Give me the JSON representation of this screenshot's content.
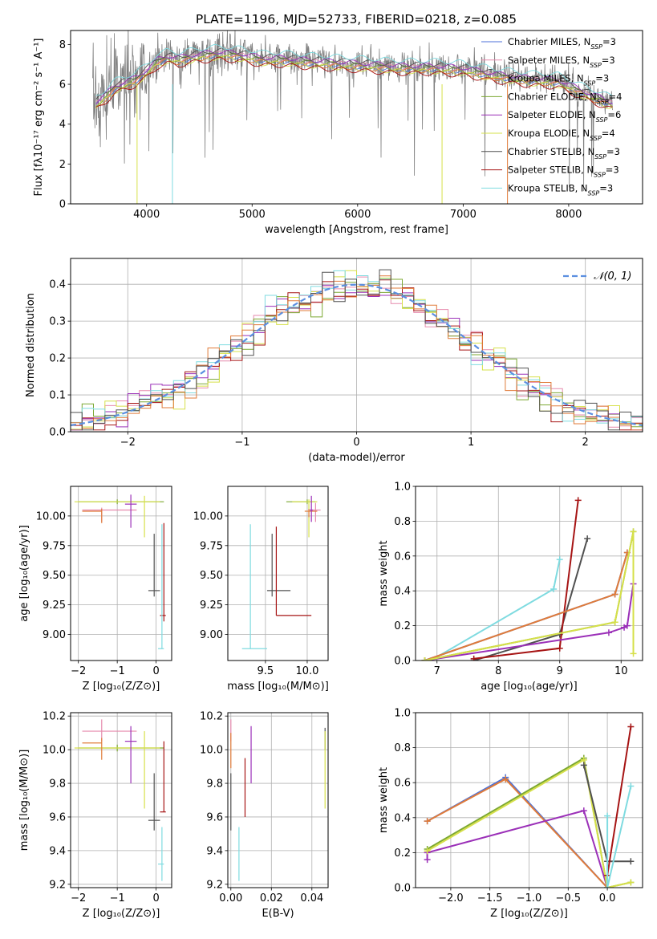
{
  "figure_title": "PLATE=1196, MJD=52733, FIBERID=0218, z=0.085",
  "colors": {
    "chabrier_miles": "#4d72d9",
    "salpeter_miles": "#e68aad",
    "kroupa_miles": "#e07b39",
    "chabrier_elodie": "#7ca832",
    "salpeter_elodie": "#9b30b8",
    "kroupa_elodie": "#d6e04a",
    "chabrier_stelib": "#505050",
    "salpeter_stelib": "#a61414",
    "kroupa_stelib": "#7fdbe0",
    "gaussian": "#5b8fe0",
    "data": "#808080"
  },
  "chart_data": [
    {
      "id": "spectrum",
      "type": "line",
      "title": "PLATE=1196, MJD=52733, FIBERID=0218, z=0.085",
      "xlabel": "wavelength [Angstrom, rest frame]",
      "ylabel": "Flux [fλ10⁻¹⁷ erg cm⁻² s⁻¹ A⁻¹]",
      "xlim": [
        3280,
        8700
      ],
      "ylim": [
        0,
        8.7
      ],
      "xticks": [
        4000,
        5000,
        6000,
        7000,
        8000
      ],
      "yticks": [
        0,
        2,
        4,
        6,
        8
      ],
      "grid": false,
      "legend_position": "right",
      "legend": [
        {
          "label": "Chabrier MILES, N",
          "sub": "SSP",
          "n": "=3",
          "color_key": "chabrier_miles"
        },
        {
          "label": "Salpeter MILES, N",
          "sub": "SSP",
          "n": "=3",
          "color_key": "salpeter_miles"
        },
        {
          "label": "Kroupa MILES, N",
          "sub": "SSP",
          "n": "=3",
          "color_key": "kroupa_miles"
        },
        {
          "label": "Chabrier ELODIE, N",
          "sub": "SSP",
          "n": "=4",
          "color_key": "chabrier_elodie"
        },
        {
          "label": "Salpeter ELODIE, N",
          "sub": "SSP",
          "n": "=6",
          "color_key": "salpeter_elodie"
        },
        {
          "label": "Kroupa ELODIE, N",
          "sub": "SSP",
          "n": "=4",
          "color_key": "kroupa_elodie"
        },
        {
          "label": "Chabrier STELIB, N",
          "sub": "SSP",
          "n": "=3",
          "color_key": "chabrier_stelib"
        },
        {
          "label": "Salpeter STELIB, N",
          "sub": "SSP",
          "n": "=3",
          "color_key": "salpeter_stelib"
        },
        {
          "label": "Kroupa STELIB, N",
          "sub": "SSP",
          "n": "=3",
          "color_key": "kroupa_stelib"
        }
      ],
      "continuum": {
        "x": [
          3500,
          3600,
          3700,
          3800,
          3900,
          4000,
          4100,
          4200,
          4300,
          4500,
          4700,
          4900,
          5100,
          5300,
          5500,
          5800,
          6100,
          6400,
          6700,
          7000,
          7300,
          7600,
          7900,
          8200,
          8400
        ],
        "y": [
          5.0,
          5.4,
          5.9,
          6.1,
          6.3,
          6.7,
          7.2,
          7.4,
          7.3,
          7.5,
          7.6,
          7.5,
          7.3,
          7.3,
          7.2,
          7.1,
          7.0,
          6.9,
          6.9,
          6.8,
          6.5,
          6.3,
          6.2,
          5.5,
          5.1
        ]
      },
      "model_offsets": {
        "chabrier_miles": -0.15,
        "salpeter_miles": -0.05,
        "kroupa_miles": -0.2,
        "chabrier_elodie": -0.1,
        "salpeter_elodie": 0.05,
        "kroupa_elodie": -0.25,
        "chabrier_stelib": 0.1,
        "salpeter_stelib": -0.35,
        "kroupa_stelib": 0.3
      }
    },
    {
      "id": "residuals",
      "type": "histogram",
      "xlabel": "(data-model)/error",
      "ylabel": "Normed distribution",
      "xlim": [
        -2.5,
        2.5
      ],
      "ylim": [
        0,
        0.47
      ],
      "xticks": [
        -2,
        -1,
        0,
        1,
        2
      ],
      "yticks": [
        0.0,
        0.1,
        0.2,
        0.3,
        0.4
      ],
      "grid": true,
      "legend_position": "top-right",
      "gaussian_label": "𝒩(0, 1)",
      "bin_width": 0.1,
      "bin_start": -2.5,
      "series_colors": [
        "salpeter_miles",
        "chabrier_elodie",
        "salpeter_elodie",
        "kroupa_elodie",
        "salpeter_stelib",
        "kroupa_stelib",
        "kroupa_miles",
        "chabrier_stelib"
      ]
    },
    {
      "id": "age_vs_z",
      "type": "errorbar",
      "xlabel": "Z [log₁₀(Z/Z⊙)]",
      "ylabel": "age  [log₁₀(age/yr)]",
      "xlim": [
        -2.2,
        0.4
      ],
      "ylim": [
        8.78,
        10.25
      ],
      "xticks": [
        -2,
        -1,
        0
      ],
      "yticks": [
        9.0,
        9.25,
        9.5,
        9.75,
        10.0
      ],
      "grid": true,
      "points": [
        {
          "color_key": "chabrier_elodie",
          "x": -1.0,
          "y": 10.12,
          "xerr": [
            1.0,
            1.2
          ],
          "yerr": [
            0.02,
            0.02
          ]
        },
        {
          "color_key": "kroupa_elodie",
          "x": -0.3,
          "y": 10.12,
          "xerr": [
            1.8,
            0.4
          ],
          "yerr": [
            0.3,
            0.05
          ]
        },
        {
          "color_key": "salpeter_miles",
          "x": -1.4,
          "y": 10.05,
          "xerr": [
            0.5,
            0.9
          ],
          "yerr": [
            0.1,
            0.02
          ]
        },
        {
          "color_key": "kroupa_miles",
          "x": -1.4,
          "y": 10.04,
          "xerr": [
            0.5,
            0.0
          ],
          "yerr": [
            0.1,
            0.02
          ]
        },
        {
          "color_key": "salpeter_elodie",
          "x": -0.65,
          "y": 10.1,
          "xerr": [
            0.15,
            0.15
          ],
          "yerr": [
            0.2,
            0.08
          ]
        },
        {
          "color_key": "chabrier_stelib",
          "x": -0.05,
          "y": 9.37,
          "xerr": [
            0.15,
            0.15
          ],
          "yerr": [
            0.05,
            0.48
          ]
        },
        {
          "color_key": "salpeter_stelib",
          "x": 0.2,
          "y": 9.16,
          "xerr": [
            0.1,
            0.05
          ],
          "yerr": [
            0.05,
            0.78
          ]
        },
        {
          "color_key": "kroupa_stelib",
          "x": 0.15,
          "y": 8.88,
          "xerr": [
            0.1,
            0.05
          ],
          "yerr": [
            0.0,
            1.05
          ]
        }
      ]
    },
    {
      "id": "age_vs_mass",
      "type": "errorbar",
      "xlabel": "mass [log₁₀(M/M⊙)]",
      "ylabel": "",
      "xlim": [
        9.05,
        10.25
      ],
      "ylim": [
        8.78,
        10.25
      ],
      "xticks": [
        9.5,
        10.0
      ],
      "yticks": [
        9.0,
        9.25,
        9.5,
        9.75,
        10.0
      ],
      "grid": true,
      "points": [
        {
          "color_key": "chabrier_elodie",
          "x": 10.0,
          "y": 10.12,
          "xerr": [
            0.25,
            0.1
          ],
          "yerr": [
            0.02,
            0.02
          ]
        },
        {
          "color_key": "kroupa_elodie",
          "x": 10.02,
          "y": 10.12,
          "xerr": [
            0.2,
            0.1
          ],
          "yerr": [
            0.3,
            0.02
          ]
        },
        {
          "color_key": "salpeter_miles",
          "x": 10.1,
          "y": 10.05,
          "xerr": [
            0.06,
            0.06
          ],
          "yerr": [
            0.1,
            0.06
          ]
        },
        {
          "color_key": "kroupa_miles",
          "x": 10.02,
          "y": 10.04,
          "xerr": [
            0.05,
            0.1
          ],
          "yerr": [
            0.05,
            0.02
          ]
        },
        {
          "color_key": "salpeter_elodie",
          "x": 10.05,
          "y": 10.05,
          "xerr": [
            0.02,
            0.02
          ],
          "yerr": [
            0.1,
            0.12
          ]
        },
        {
          "color_key": "chabrier_stelib",
          "x": 9.58,
          "y": 9.37,
          "xerr": [
            0.06,
            0.22
          ],
          "yerr": [
            0.05,
            0.48
          ]
        },
        {
          "color_key": "salpeter_stelib",
          "x": 9.63,
          "y": 9.16,
          "xerr": [
            0.0,
            0.42
          ],
          "yerr": [
            0.0,
            0.75
          ]
        },
        {
          "color_key": "kroupa_stelib",
          "x": 9.32,
          "y": 8.88,
          "xerr": [
            0.1,
            0.2
          ],
          "yerr": [
            0.0,
            1.05
          ]
        }
      ]
    },
    {
      "id": "weight_vs_age",
      "type": "line",
      "xlabel": "age  [log₁₀(age/yr)]",
      "ylabel": "mass weight",
      "xlim": [
        6.65,
        10.35
      ],
      "ylim": [
        0,
        1.0
      ],
      "xticks": [
        7,
        8,
        9,
        10
      ],
      "yticks": [
        0.0,
        0.2,
        0.4,
        0.6,
        0.8,
        1.0
      ],
      "grid": true,
      "series": [
        {
          "color_key": "kroupa_stelib",
          "x": [
            6.9,
            8.9,
            9.0
          ],
          "y": [
            0.0,
            0.41,
            0.58
          ]
        },
        {
          "color_key": "chabrier_stelib",
          "x": [
            7.6,
            9.0,
            9.45
          ],
          "y": [
            0.0,
            0.15,
            0.7
          ]
        },
        {
          "color_key": "salpeter_stelib",
          "x": [
            7.6,
            9.0,
            9.3
          ],
          "y": [
            0.01,
            0.07,
            0.92
          ]
        },
        {
          "color_key": "chabrier_miles",
          "x": [
            6.8,
            9.9,
            10.1
          ],
          "y": [
            0.0,
            0.38,
            0.62
          ]
        },
        {
          "color_key": "kroupa_miles",
          "x": [
            6.8,
            9.9,
            10.1
          ],
          "y": [
            0.0,
            0.38,
            0.62
          ]
        },
        {
          "color_key": "salpeter_elodie",
          "x": [
            6.8,
            9.8,
            10.05,
            10.1,
            10.2
          ],
          "y": [
            0.0,
            0.16,
            0.19,
            0.2,
            0.44
          ]
        },
        {
          "color_key": "chabrier_elodie",
          "x": [
            6.8,
            9.9,
            10.2
          ],
          "y": [
            0.0,
            0.22,
            0.74
          ]
        },
        {
          "color_key": "kroupa_elodie",
          "x": [
            6.8,
            9.9,
            10.2,
            10.2
          ],
          "y": [
            0.0,
            0.22,
            0.74,
            0.04
          ]
        }
      ]
    },
    {
      "id": "mass_vs_z",
      "type": "errorbar",
      "xlabel": "Z [log₁₀(Z/Z⊙)]",
      "ylabel": "mass [log₁₀(M/M⊙)]",
      "xlim": [
        -2.2,
        0.4
      ],
      "ylim": [
        9.18,
        10.22
      ],
      "xticks": [
        -2,
        -1,
        0
      ],
      "yticks": [
        9.2,
        9.4,
        9.6,
        9.8,
        10.0,
        10.2
      ],
      "grid": true,
      "points": [
        {
          "color_key": "chabrier_elodie",
          "x": -1.0,
          "y": 10.01,
          "xerr": [
            1.0,
            1.2
          ],
          "yerr": [
            0.02,
            0.02
          ]
        },
        {
          "color_key": "kroupa_elodie",
          "x": -0.3,
          "y": 10.01,
          "xerr": [
            1.8,
            0.4
          ],
          "yerr": [
            0.36,
            0.1
          ]
        },
        {
          "color_key": "salpeter_miles",
          "x": -1.4,
          "y": 10.11,
          "xerr": [
            0.5,
            0.9
          ],
          "yerr": [
            0.06,
            0.07
          ]
        },
        {
          "color_key": "kroupa_miles",
          "x": -1.4,
          "y": 10.04,
          "xerr": [
            0.5,
            0.0
          ],
          "yerr": [
            0.1,
            0.03
          ]
        },
        {
          "color_key": "salpeter_elodie",
          "x": -0.65,
          "y": 10.05,
          "xerr": [
            0.15,
            0.15
          ],
          "yerr": [
            0.25,
            0.09
          ]
        },
        {
          "color_key": "chabrier_stelib",
          "x": -0.05,
          "y": 9.58,
          "xerr": [
            0.15,
            0.15
          ],
          "yerr": [
            0.06,
            0.28
          ]
        },
        {
          "color_key": "salpeter_stelib",
          "x": 0.2,
          "y": 9.63,
          "xerr": [
            0.1,
            0.05
          ],
          "yerr": [
            0.0,
            0.42
          ]
        },
        {
          "color_key": "kroupa_stelib",
          "x": 0.15,
          "y": 9.32,
          "xerr": [
            0.1,
            0.05
          ],
          "yerr": [
            0.1,
            0.22
          ]
        }
      ]
    },
    {
      "id": "mass_vs_ebv",
      "type": "errorbar",
      "xlabel": "E(B-V)",
      "ylabel": "",
      "xlim": [
        -0.0015,
        0.048
      ],
      "ylim": [
        9.18,
        10.22
      ],
      "xticks": [
        0.0,
        0.02,
        0.04
      ],
      "yticks": [
        9.2,
        9.4,
        9.6,
        9.8,
        10.0,
        10.2
      ],
      "grid": true,
      "points": [
        {
          "color_key": "salpeter_miles",
          "x": 0.0,
          "y": 10.11,
          "xerr": [
            0.0,
            0.0
          ],
          "yerr": [
            0.06,
            0.07
          ]
        },
        {
          "color_key": "kroupa_miles",
          "x": 0.0,
          "y": 10.04,
          "xerr": [
            0.0,
            0.0
          ],
          "yerr": [
            0.15,
            0.06
          ]
        },
        {
          "color_key": "chabrier_stelib",
          "x": 0.0,
          "y": 9.58,
          "xerr": [
            0.0,
            0.0
          ],
          "yerr": [
            0.06,
            0.28
          ]
        },
        {
          "color_key": "kroupa_stelib",
          "x": 0.004,
          "y": 9.32,
          "xerr": [
            0.0,
            0.0
          ],
          "yerr": [
            0.1,
            0.22
          ]
        },
        {
          "color_key": "salpeter_stelib",
          "x": 0.007,
          "y": 9.63,
          "xerr": [
            0.0,
            0.0
          ],
          "yerr": [
            0.03,
            0.32
          ]
        },
        {
          "color_key": "salpeter_elodie",
          "x": 0.01,
          "y": 10.05,
          "xerr": [
            0.0,
            0.0
          ],
          "yerr": [
            0.25,
            0.09
          ]
        },
        {
          "color_key": "chabrier_stelib",
          "x": 0.0465,
          "y": 10.1,
          "xerr": [
            0.0,
            0.0
          ],
          "yerr": [
            0.1,
            0.03
          ]
        },
        {
          "color_key": "kroupa_elodie",
          "x": 0.0465,
          "y": 10.01,
          "xerr": [
            0.0,
            0.0
          ],
          "yerr": [
            0.36,
            0.1
          ]
        }
      ]
    },
    {
      "id": "weight_vs_z",
      "type": "line",
      "xlabel": "Z [log₁₀(Z/Z⊙)]",
      "ylabel": "mass weight",
      "xlim": [
        -2.45,
        0.45
      ],
      "ylim": [
        0,
        1.0
      ],
      "xticks": [
        -2.0,
        -1.5,
        -1.0,
        -0.5,
        0.0
      ],
      "yticks": [
        0.0,
        0.2,
        0.4,
        0.6,
        0.8,
        1.0
      ],
      "grid": true,
      "series": [
        {
          "color_key": "chabrier_miles",
          "x": [
            -2.3,
            -1.3,
            0.0
          ],
          "y": [
            0.38,
            0.63,
            0.0
          ]
        },
        {
          "color_key": "kroupa_miles",
          "x": [
            -2.3,
            -1.3,
            0.0
          ],
          "y": [
            0.38,
            0.62,
            0.0
          ]
        },
        {
          "color_key": "salpeter_elodie",
          "x": [
            -2.3,
            -2.3,
            -0.3,
            0.0
          ],
          "y": [
            0.16,
            0.2,
            0.44,
            0.0
          ]
        },
        {
          "color_key": "chabrier_elodie",
          "x": [
            -2.3,
            -0.3,
            0.0,
            0.3
          ],
          "y": [
            0.22,
            0.74,
            0.0,
            0.03
          ]
        },
        {
          "color_key": "kroupa_elodie",
          "x": [
            -2.3,
            -0.3,
            0.0,
            0.3
          ],
          "y": [
            0.21,
            0.73,
            0.0,
            0.03
          ]
        },
        {
          "color_key": "chabrier_stelib",
          "x": [
            -0.3,
            0.0,
            0.3
          ],
          "y": [
            0.7,
            0.15,
            0.15
          ]
        },
        {
          "color_key": "salpeter_stelib",
          "x": [
            0.0,
            0.3
          ],
          "y": [
            0.07,
            0.92
          ]
        },
        {
          "color_key": "kroupa_stelib",
          "x": [
            0.0,
            0.0,
            0.3
          ],
          "y": [
            0.41,
            0.0,
            0.58
          ]
        }
      ]
    }
  ]
}
